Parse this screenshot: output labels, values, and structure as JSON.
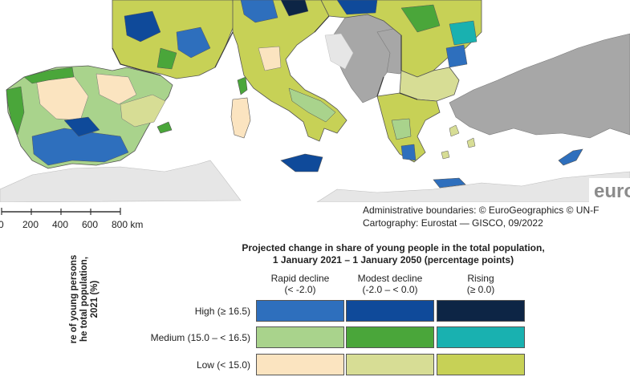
{
  "map": {
    "colors": {
      "sea": "#ffffff",
      "outside": "#a7a7a7",
      "land_grey": "#e6e6e6",
      "border": "#5a5a5a"
    },
    "watermark": "euro"
  },
  "scale": {
    "ticks": [
      "0",
      "200",
      "400",
      "600",
      "800 km"
    ]
  },
  "credits": {
    "line1": "Administrative boundaries: © EuroGeographics © UN-F",
    "line2": "Cartography: Eurostat — GISCO, 09/2022"
  },
  "legend": {
    "title_line1": "Projected change in share of young people in the total population,",
    "title_line2": "1 January 2021 – 1 January 2050 (percentage points)",
    "columns": [
      {
        "label": "Rapid decline",
        "range": "(< -2.0)"
      },
      {
        "label": "Modest decline",
        "range": "(-2.0 – < 0.0)"
      },
      {
        "label": "Rising",
        "range": "(≥ 0.0)"
      }
    ],
    "rows": [
      {
        "label": "High (≥ 16.5)",
        "colors": [
          "#2e6fbd",
          "#0f4a9a",
          "#0d2545"
        ]
      },
      {
        "label": "Medium (15.0 – < 16.5)",
        "colors": [
          "#a9d38c",
          "#4aa63a",
          "#19b1b0"
        ]
      },
      {
        "label": "Low (< 15.0)",
        "colors": [
          "#fbe4c0",
          "#d7dd95",
          "#c7d156"
        ]
      }
    ],
    "y_title_line1": "re of young persons",
    "y_title_line2": "he total population,",
    "y_title_line3": "2021 (%)"
  }
}
